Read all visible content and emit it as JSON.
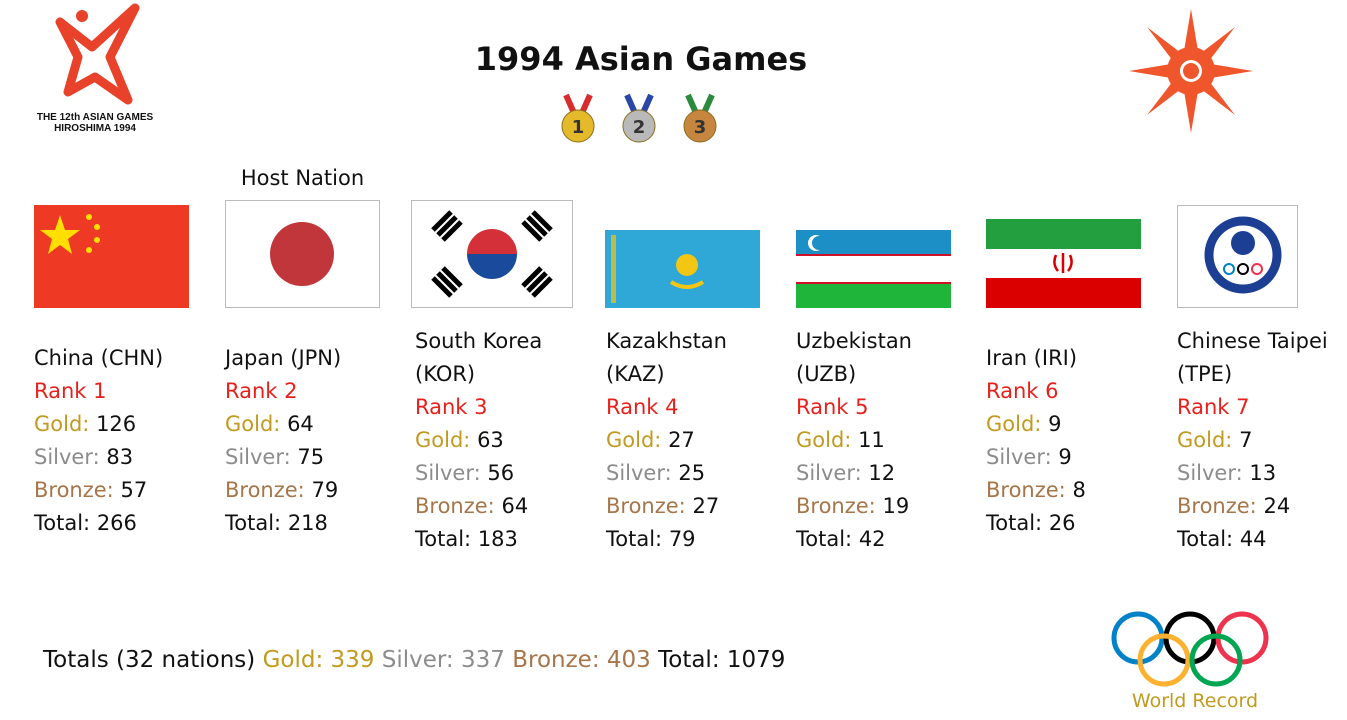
{
  "header": {
    "title": "1994 Asian Games",
    "logo_lines": [
      "THE 12th ASIAN GAMES",
      "HIROSHIMA 1994"
    ],
    "medal_icons": [
      "1",
      "2",
      "3"
    ]
  },
  "labels": {
    "gold": "Gold:",
    "silver": "Silver:",
    "bronze": "Bronze:",
    "total": "Total:"
  },
  "host_note": "Host Nation",
  "nations": [
    {
      "name": "China (CHN)",
      "rank": "Rank 1",
      "gold": 126,
      "silver": 83,
      "bronze": 57,
      "total": 266
    },
    {
      "name": "Japan (JPN)",
      "rank": "Rank 2",
      "gold": 64,
      "silver": 75,
      "bronze": 79,
      "total": 218
    },
    {
      "name": "South Korea (KOR)",
      "rank": "Rank 3",
      "gold": 63,
      "silver": 56,
      "bronze": 64,
      "total": 183
    },
    {
      "name": "Kazakhstan (KAZ)",
      "rank": "Rank 4",
      "gold": 27,
      "silver": 25,
      "bronze": 27,
      "total": 79
    },
    {
      "name": "Uzbekistan (UZB)",
      "rank": "Rank 5",
      "gold": 11,
      "silver": 12,
      "bronze": 19,
      "total": 42
    },
    {
      "name": "Iran (IRI)",
      "rank": "Rank 6",
      "gold": 9,
      "silver": 9,
      "bronze": 8,
      "total": 26
    },
    {
      "name": "Chinese Taipei (TPE)",
      "rank": "Rank 7",
      "gold": 7,
      "silver": 13,
      "bronze": 24,
      "total": 44
    }
  ],
  "footer": {
    "totals_label": "Totals (32 nations)",
    "gold": 339,
    "silver": 337,
    "bronze": 403,
    "total": 1079
  },
  "brand": "World Record"
}
